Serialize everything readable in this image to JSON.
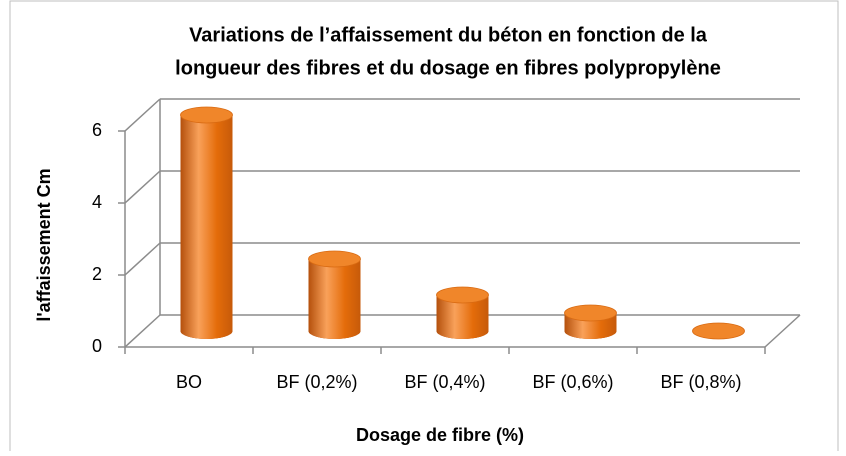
{
  "chart_data": {
    "type": "bar3d",
    "title": [
      "Variations de l’affaissement  du béton en fonction de la",
      "longueur des fibres et du dosage en fibres polypropylène"
    ],
    "x_label": "Dosage de fibre (%)",
    "y_label": "l'affaissement Cm",
    "categories": [
      "BO",
      "BF (0,2%)",
      "BF (0,4%)",
      "BF (0,6%)",
      "BF (0,8%)"
    ],
    "values": [
      6,
      2,
      1,
      0.5,
      0
    ],
    "color": "#e46c0a",
    "ylim": [
      0,
      6
    ],
    "yticks": [
      0,
      2,
      4,
      6
    ],
    "grid": true
  }
}
